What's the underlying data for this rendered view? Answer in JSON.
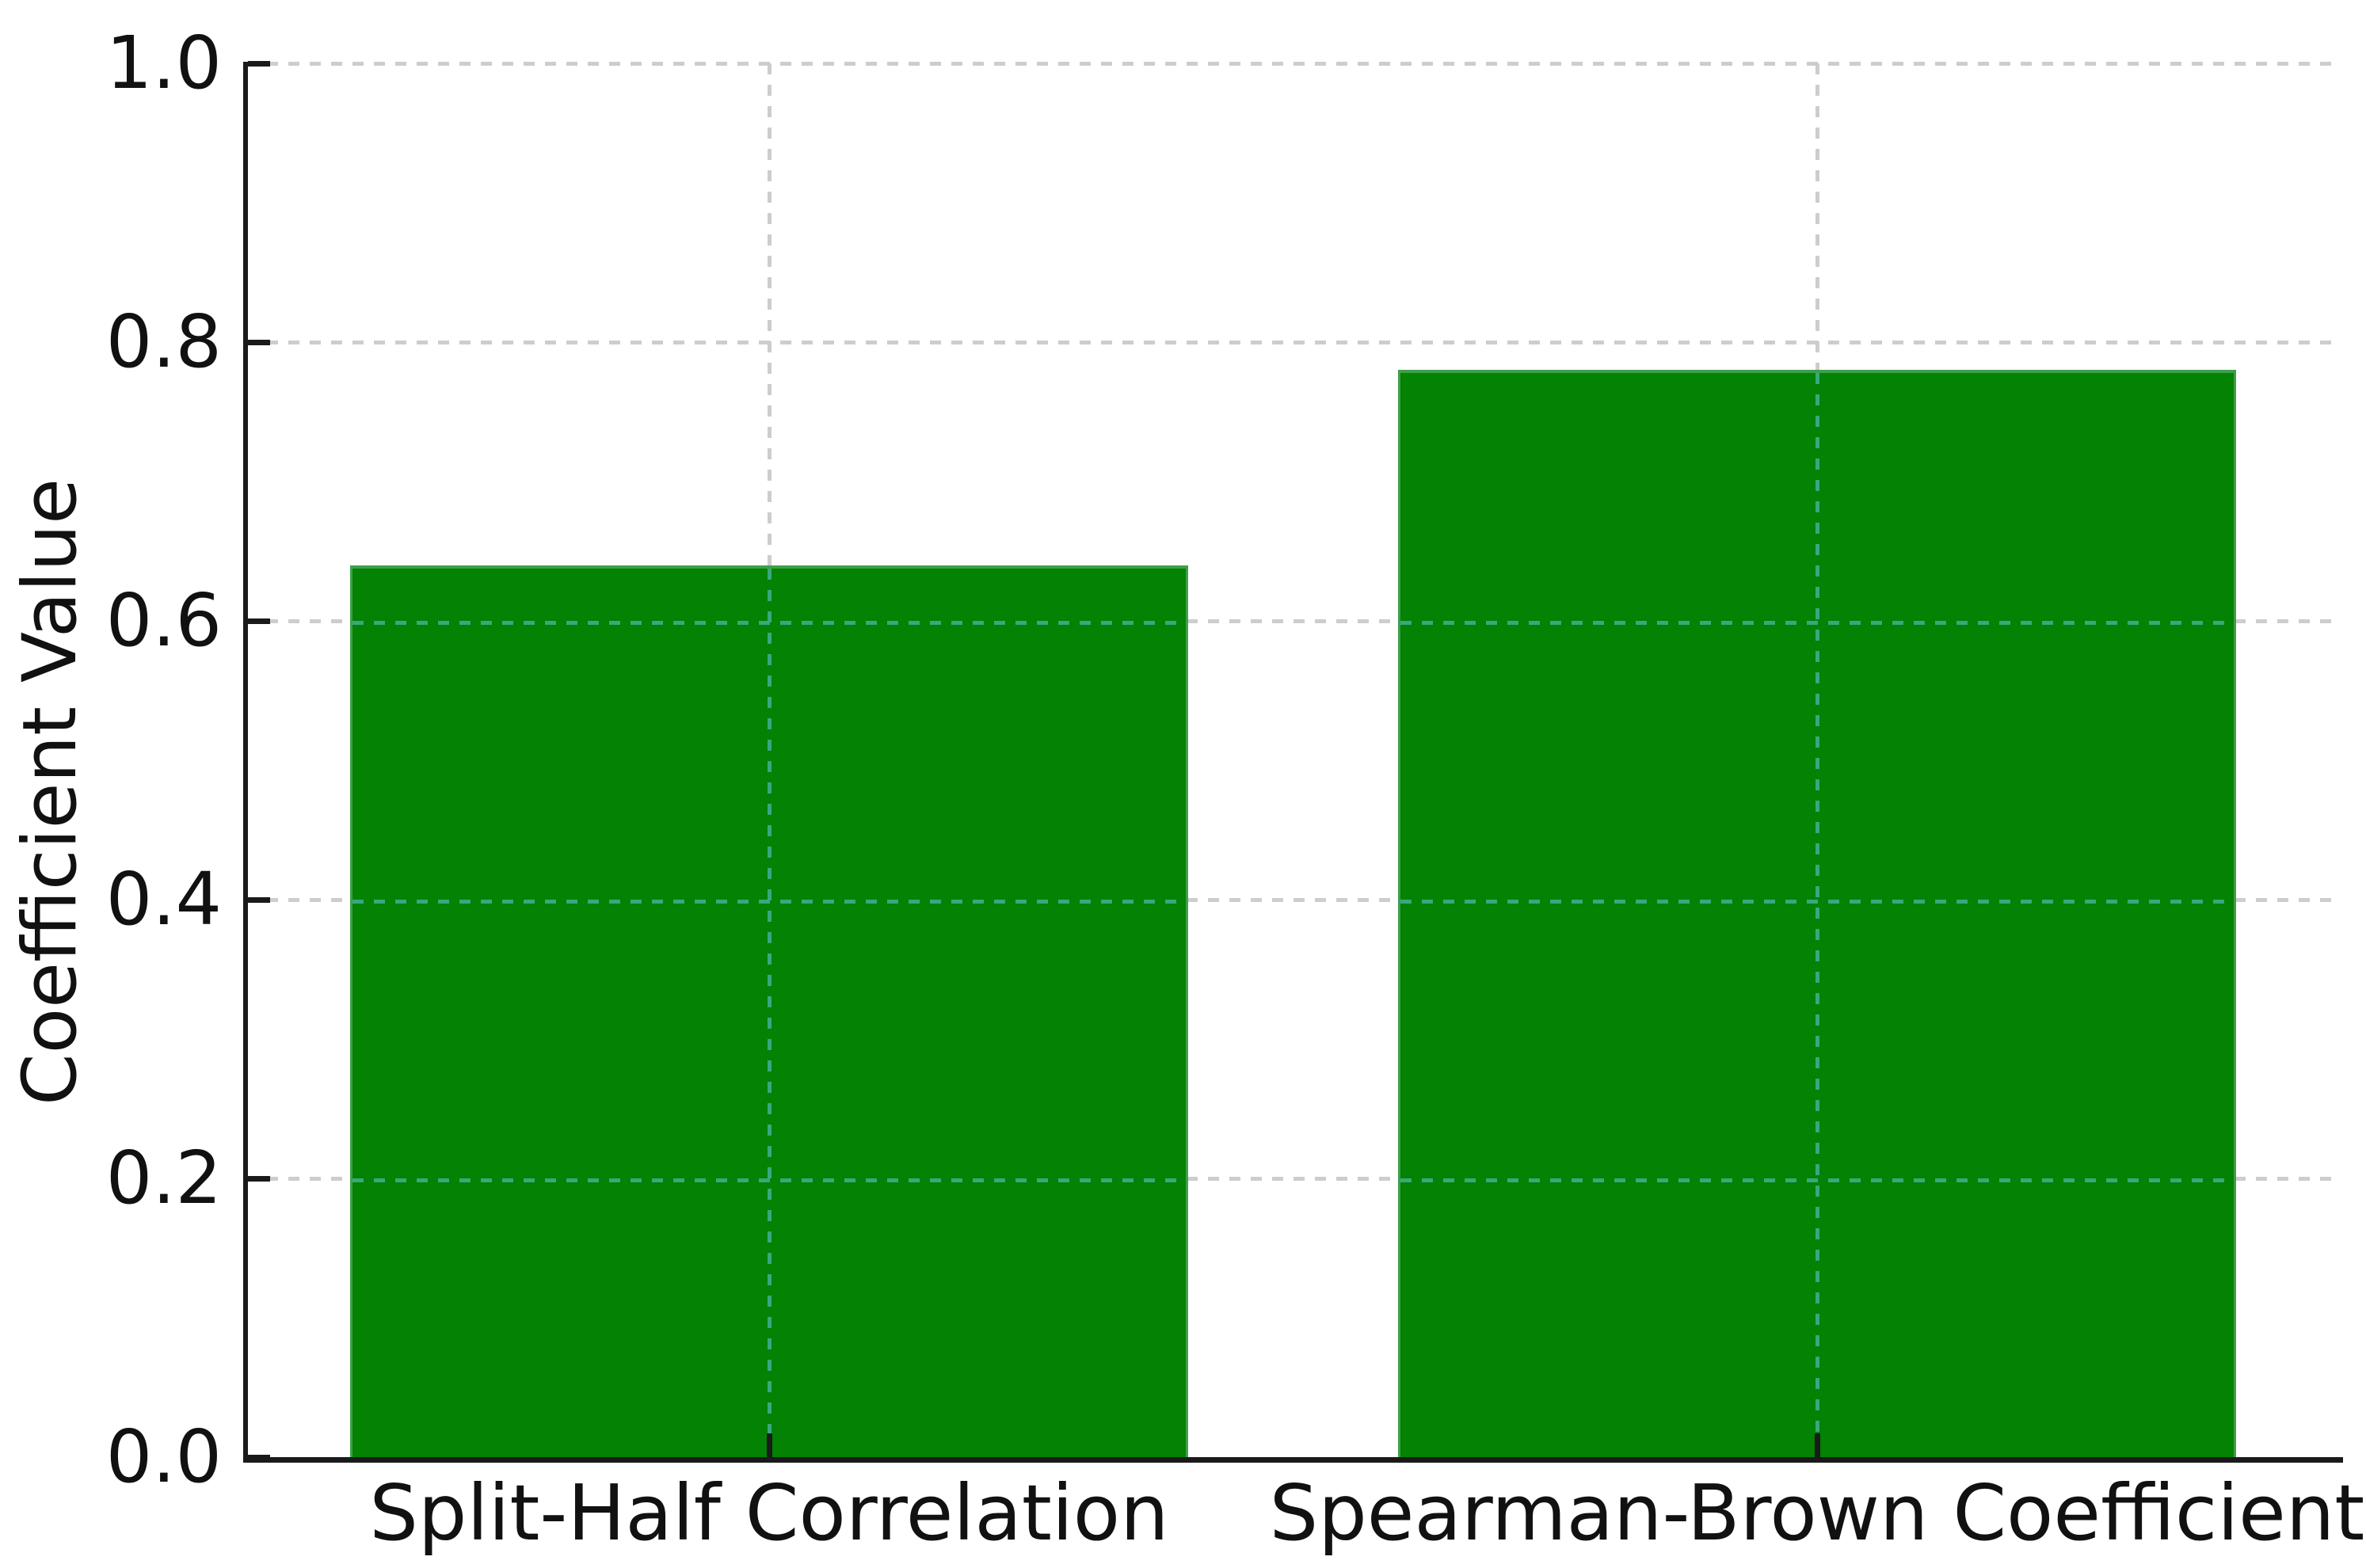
{
  "chart_data": {
    "type": "bar",
    "categories": [
      "Split-Half Correlation",
      "Spearman-Brown Coefficient"
    ],
    "values": [
      0.64,
      0.78
    ],
    "title": "",
    "xlabel": "",
    "ylabel": "Coefficient Value",
    "ylim": [
      0.0,
      1.0
    ],
    "yticks": [
      0.0,
      0.2,
      0.4,
      0.6,
      0.8,
      1.0
    ],
    "ytick_labels": [
      "0.0",
      "0.2",
      "0.4",
      "0.6",
      "0.8",
      "1.0"
    ],
    "grid": "on",
    "grid_style": "dashed",
    "legend_position": "none",
    "bar_color": "#038203",
    "bar_edge_color": "#3f9f4a",
    "grid_color": "#cdcdcd",
    "grid_color_over_bar": "#3aa77e",
    "axis_color": "#1a1a1a",
    "text_color": "#111111",
    "background_color": "#ffffff"
  }
}
